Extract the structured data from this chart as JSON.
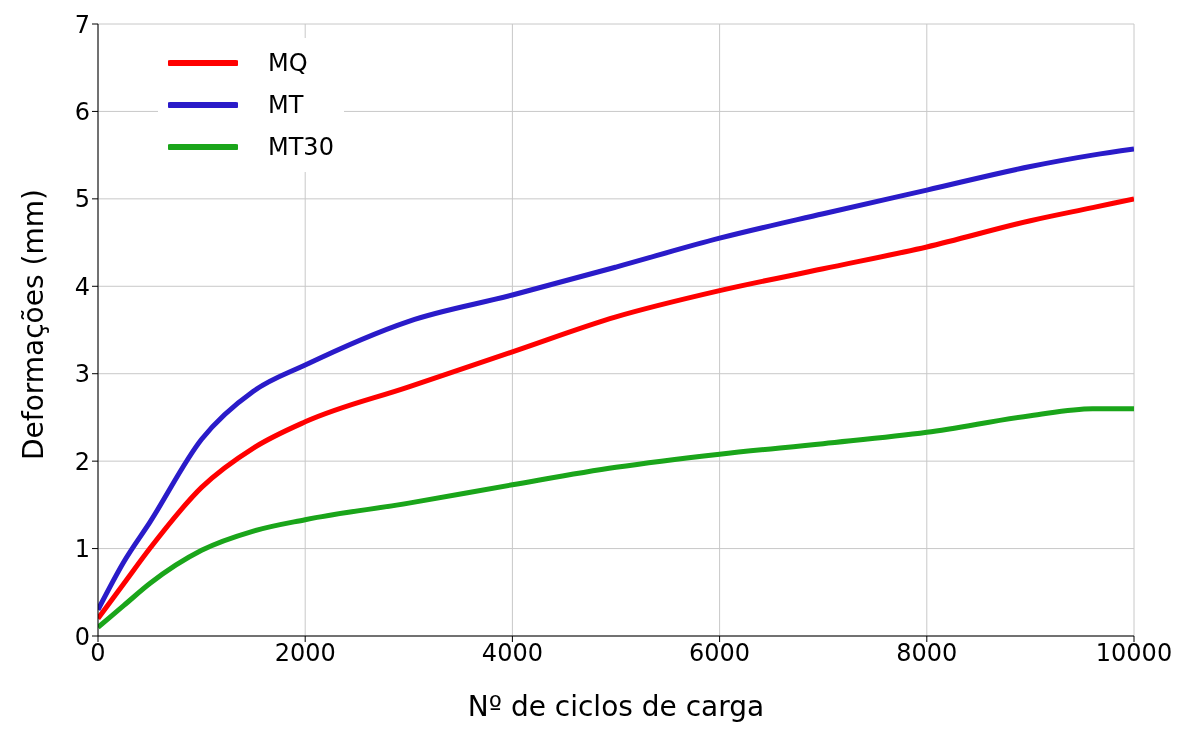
{
  "chart_data": {
    "type": "line",
    "xlabel": "Nº de ciclos de carga",
    "ylabel": "Deformações (mm)",
    "x": [
      0,
      250,
      500,
      1000,
      1500,
      2000,
      3000,
      4000,
      5000,
      6000,
      7000,
      8000,
      9000,
      9600,
      10000
    ],
    "series": [
      {
        "name": "MQ",
        "color": "#ff0000",
        "values": [
          0.2,
          0.6,
          1.0,
          1.7,
          2.15,
          2.45,
          2.85,
          3.25,
          3.65,
          3.95,
          4.2,
          4.45,
          4.75,
          4.9,
          5.0
        ]
      },
      {
        "name": "MT",
        "color": "#2a1bc9",
        "values": [
          0.3,
          0.85,
          1.3,
          2.25,
          2.8,
          3.1,
          3.6,
          3.9,
          4.22,
          4.55,
          4.83,
          5.1,
          5.37,
          5.5,
          5.57
        ]
      },
      {
        "name": "MT30",
        "color": "#1aa51a",
        "values": [
          0.1,
          0.35,
          0.6,
          0.98,
          1.2,
          1.33,
          1.52,
          1.73,
          1.93,
          2.08,
          2.2,
          2.33,
          2.52,
          2.6,
          2.6
        ]
      }
    ],
    "xlim": [
      0,
      10000
    ],
    "xticks": [
      0,
      2000,
      4000,
      6000,
      8000,
      10000
    ],
    "ylim": [
      0,
      7
    ],
    "yticks": [
      0,
      1,
      2,
      3,
      4,
      5,
      6,
      7
    ],
    "grid": true,
    "legend": "top left",
    "marker": "none",
    "line_style": "solid"
  }
}
